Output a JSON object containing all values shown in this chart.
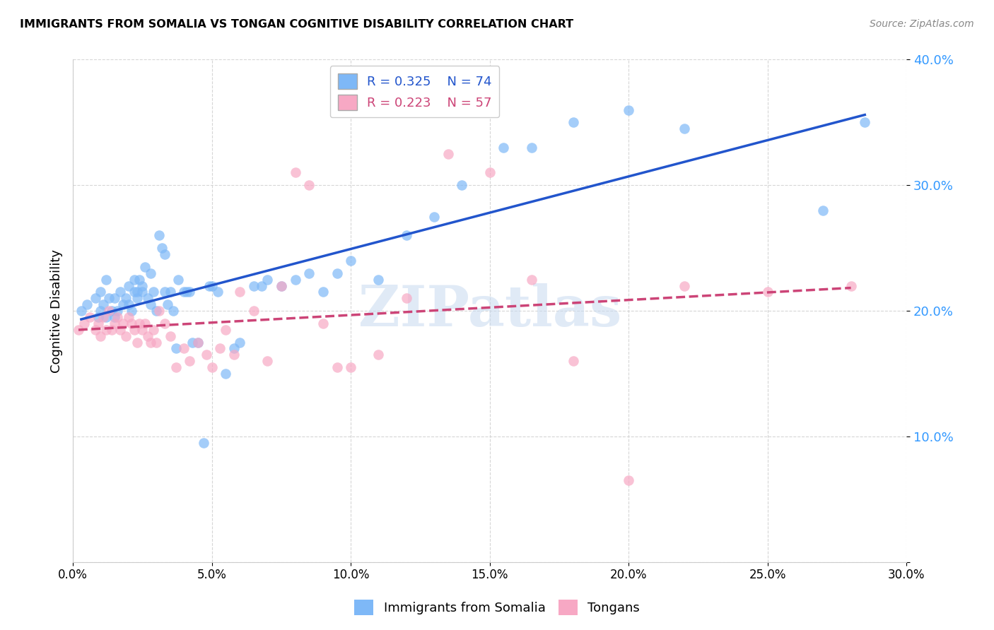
{
  "title": "IMMIGRANTS FROM SOMALIA VS TONGAN COGNITIVE DISABILITY CORRELATION CHART",
  "source": "Source: ZipAtlas.com",
  "ylabel": "Cognitive Disability",
  "xlim": [
    0.0,
    0.3
  ],
  "ylim": [
    0.0,
    0.4
  ],
  "legend_r1": "R = 0.325",
  "legend_n1": "N = 74",
  "legend_r2": "R = 0.223",
  "legend_n2": "N = 57",
  "somalia_color": "#7EB8F7",
  "tongan_color": "#F7A8C4",
  "line_somalia_color": "#2255CC",
  "line_tongan_color": "#CC4477",
  "background_color": "#ffffff",
  "watermark_text": "ZIPatlas",
  "somalia_x": [
    0.003,
    0.005,
    0.008,
    0.009,
    0.01,
    0.01,
    0.011,
    0.012,
    0.012,
    0.013,
    0.014,
    0.015,
    0.015,
    0.016,
    0.017,
    0.018,
    0.019,
    0.02,
    0.02,
    0.021,
    0.022,
    0.022,
    0.023,
    0.023,
    0.024,
    0.025,
    0.025,
    0.026,
    0.027,
    0.028,
    0.028,
    0.029,
    0.03,
    0.031,
    0.032,
    0.033,
    0.033,
    0.034,
    0.035,
    0.036,
    0.037,
    0.038,
    0.04,
    0.041,
    0.042,
    0.043,
    0.045,
    0.047,
    0.049,
    0.05,
    0.052,
    0.055,
    0.058,
    0.06,
    0.065,
    0.068,
    0.07,
    0.075,
    0.08,
    0.085,
    0.09,
    0.095,
    0.1,
    0.11,
    0.12,
    0.13,
    0.14,
    0.155,
    0.165,
    0.18,
    0.2,
    0.22,
    0.27,
    0.285
  ],
  "somalia_y": [
    0.2,
    0.205,
    0.21,
    0.195,
    0.2,
    0.215,
    0.205,
    0.195,
    0.225,
    0.21,
    0.2,
    0.195,
    0.21,
    0.2,
    0.215,
    0.205,
    0.21,
    0.205,
    0.22,
    0.2,
    0.215,
    0.225,
    0.215,
    0.21,
    0.225,
    0.22,
    0.215,
    0.235,
    0.21,
    0.23,
    0.205,
    0.215,
    0.2,
    0.26,
    0.25,
    0.245,
    0.215,
    0.205,
    0.215,
    0.2,
    0.17,
    0.225,
    0.215,
    0.215,
    0.215,
    0.175,
    0.175,
    0.095,
    0.22,
    0.22,
    0.215,
    0.15,
    0.17,
    0.175,
    0.22,
    0.22,
    0.225,
    0.22,
    0.225,
    0.23,
    0.215,
    0.23,
    0.24,
    0.225,
    0.26,
    0.275,
    0.3,
    0.33,
    0.33,
    0.35,
    0.36,
    0.345,
    0.28,
    0.35
  ],
  "tongan_x": [
    0.002,
    0.004,
    0.006,
    0.008,
    0.009,
    0.01,
    0.011,
    0.012,
    0.013,
    0.014,
    0.015,
    0.016,
    0.017,
    0.018,
    0.019,
    0.02,
    0.021,
    0.022,
    0.023,
    0.024,
    0.025,
    0.026,
    0.027,
    0.028,
    0.029,
    0.03,
    0.031,
    0.033,
    0.035,
    0.037,
    0.04,
    0.042,
    0.045,
    0.048,
    0.05,
    0.053,
    0.055,
    0.058,
    0.06,
    0.065,
    0.07,
    0.075,
    0.08,
    0.085,
    0.09,
    0.095,
    0.1,
    0.11,
    0.12,
    0.135,
    0.15,
    0.165,
    0.18,
    0.2,
    0.22,
    0.25,
    0.28
  ],
  "tongan_y": [
    0.185,
    0.19,
    0.195,
    0.185,
    0.19,
    0.18,
    0.195,
    0.185,
    0.2,
    0.185,
    0.19,
    0.195,
    0.185,
    0.19,
    0.18,
    0.195,
    0.19,
    0.185,
    0.175,
    0.19,
    0.185,
    0.19,
    0.18,
    0.175,
    0.185,
    0.175,
    0.2,
    0.19,
    0.18,
    0.155,
    0.17,
    0.16,
    0.175,
    0.165,
    0.155,
    0.17,
    0.185,
    0.165,
    0.215,
    0.2,
    0.16,
    0.22,
    0.31,
    0.3,
    0.19,
    0.155,
    0.155,
    0.165,
    0.21,
    0.325,
    0.31,
    0.225,
    0.16,
    0.065,
    0.22,
    0.215,
    0.22
  ]
}
